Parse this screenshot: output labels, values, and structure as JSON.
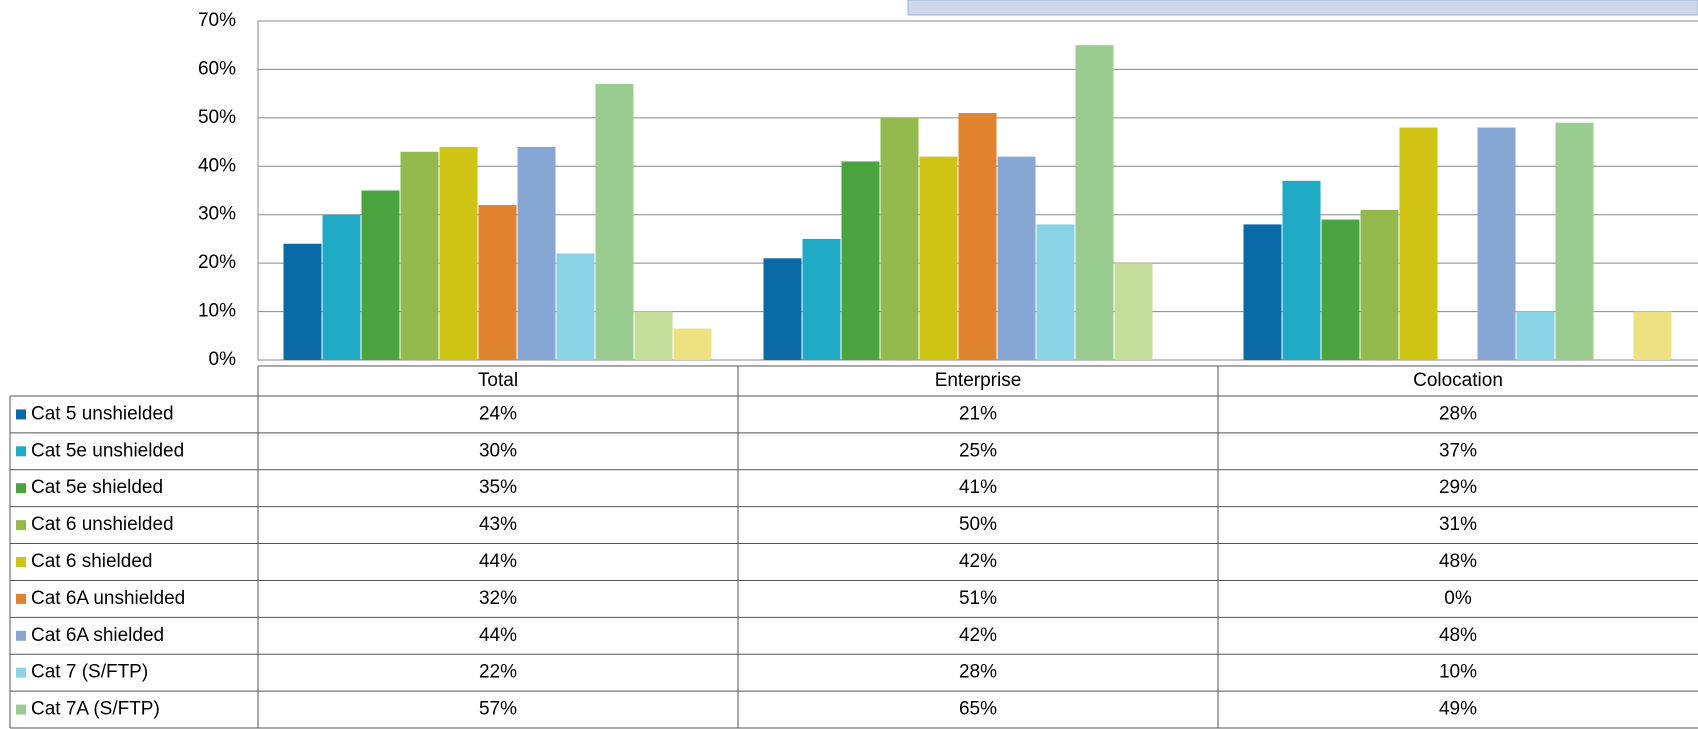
{
  "chart_data": {
    "type": "bar",
    "categories": [
      "Total",
      "Enterprise",
      "Colocation"
    ],
    "ylim": [
      0,
      70
    ],
    "yticks": [
      {
        "value": 0,
        "label": "0%"
      },
      {
        "value": 10,
        "label": "10%"
      },
      {
        "value": 20,
        "label": "20%"
      },
      {
        "value": 30,
        "label": "30%"
      },
      {
        "value": 40,
        "label": "40%"
      },
      {
        "value": 50,
        "label": "50%"
      },
      {
        "value": 60,
        "label": "60%"
      },
      {
        "value": 70,
        "label": "70%"
      }
    ],
    "grid": true,
    "series": [
      {
        "name": "Cat 5 unshielded",
        "color": "#0a6aa6",
        "values": [
          24,
          21,
          28
        ],
        "value_labels": [
          "24%",
          "21%",
          "28%"
        ]
      },
      {
        "name": "Cat 5e unshielded",
        "color": "#1ea9c4",
        "values": [
          30,
          25,
          37
        ],
        "value_labels": [
          "30%",
          "25%",
          "37%"
        ]
      },
      {
        "name": "Cat 5e shielded",
        "color": "#4aa33f",
        "values": [
          35,
          41,
          29
        ],
        "value_labels": [
          "35%",
          "41%",
          "29%"
        ]
      },
      {
        "name": "Cat 6 unshielded",
        "color": "#93b84b",
        "values": [
          43,
          50,
          31
        ],
        "value_labels": [
          "43%",
          "50%",
          "31%"
        ]
      },
      {
        "name": "Cat 6 shielded",
        "color": "#cfc313",
        "values": [
          44,
          42,
          48
        ],
        "value_labels": [
          "44%",
          "42%",
          "48%"
        ]
      },
      {
        "name": "Cat 6A unshielded",
        "color": "#e0832e",
        "values": [
          32,
          51,
          0
        ],
        "value_labels": [
          "32%",
          "51%",
          "0%"
        ]
      },
      {
        "name": "Cat 6A shielded",
        "color": "#86a6d4",
        "values": [
          44,
          42,
          48
        ],
        "value_labels": [
          "44%",
          "42%",
          "48%"
        ]
      },
      {
        "name": "Cat 7 (S/FTP)",
        "color": "#8ad3e6",
        "values": [
          22,
          28,
          10
        ],
        "value_labels": [
          "22%",
          "28%",
          "10%"
        ]
      },
      {
        "name": "Cat 7A (S/FTP)",
        "color": "#99cc8e",
        "values": [
          57,
          65,
          49
        ],
        "value_labels": [
          "57%",
          "65%",
          "49%"
        ]
      },
      {
        "name": null,
        "color": "#c4dd9b",
        "values": [
          10,
          20,
          0
        ]
      },
      {
        "name": null,
        "color": "#ede282",
        "values": [
          6.5,
          0,
          10
        ]
      }
    ]
  }
}
